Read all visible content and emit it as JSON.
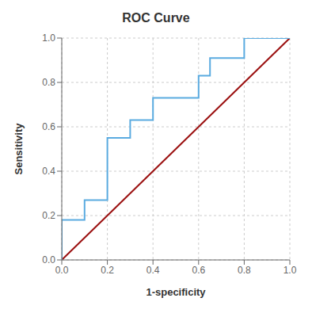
{
  "chart_data": {
    "type": "line",
    "title": "ROC Curve",
    "x_label": "1-specificity",
    "y_label": "Sensitivity",
    "series": [
      {
        "color": "#9b1010",
        "x": [
          0,
          1
        ],
        "values": [
          0,
          1
        ]
      },
      {
        "color": "#5aabe0",
        "x": [
          0.0,
          0.0,
          0.1,
          0.1,
          0.2,
          0.2,
          0.3,
          0.3,
          0.4,
          0.4,
          0.6,
          0.6,
          0.65,
          0.65,
          0.8,
          0.8,
          1.0
        ],
        "values": [
          0.0,
          0.18,
          0.18,
          0.27,
          0.27,
          0.55,
          0.55,
          0.63,
          0.63,
          0.73,
          0.73,
          0.83,
          0.83,
          0.91,
          0.91,
          1.0,
          1.0
        ]
      }
    ],
    "xlim": [
      0,
      1
    ],
    "ylim": [
      0,
      1
    ],
    "xticks": [
      {
        "value": 0,
        "label": "0.0"
      },
      0.2,
      0.4,
      0.6,
      0.8,
      {
        "value": 1,
        "label": "1.0"
      }
    ],
    "yticks": [
      {
        "value": 0,
        "label": "0.0"
      },
      0.2,
      0.4,
      0.6,
      0.8,
      {
        "value": 1,
        "label": "1.0"
      }
    ],
    "grid": true
  }
}
